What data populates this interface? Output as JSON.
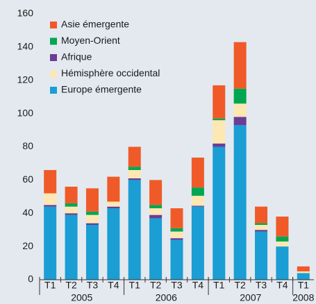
{
  "chart_data": {
    "type": "stacked_bar",
    "categories": [
      "T1",
      "T2",
      "T3",
      "T4",
      "T1",
      "T2",
      "T3",
      "T4",
      "T1",
      "T2",
      "T3",
      "T4",
      "T1"
    ],
    "groups": [
      {
        "label": "2005",
        "size": 4
      },
      {
        "label": "2006",
        "size": 4
      },
      {
        "label": "2007",
        "size": 4
      },
      {
        "label": "2008",
        "size": 1
      }
    ],
    "series": [
      {
        "name": "Asie émergente",
        "color": "#f05a28",
        "values": [
          14,
          10,
          14,
          15,
          12,
          15,
          12,
          18,
          20,
          28,
          10,
          12,
          3
        ]
      },
      {
        "name": "Moyen-Orient",
        "color": "#00a651",
        "values": [
          0,
          2,
          2,
          0,
          2,
          2,
          2,
          5,
          1,
          9,
          1,
          3,
          0
        ]
      },
      {
        "name": "Afrique",
        "color": "#6a3d96",
        "values": [
          1,
          1,
          1,
          1,
          1,
          2,
          1,
          0.5,
          2,
          5,
          1,
          0,
          0
        ]
      },
      {
        "name": "Hémisphère occidental",
        "color": "#fde7b3",
        "values": [
          7,
          4,
          5,
          3,
          5,
          4,
          4,
          6,
          14,
          8,
          3,
          3,
          1
        ]
      },
      {
        "name": "Europe émergente",
        "color": "#1a9ed4",
        "values": [
          44,
          39,
          33,
          43,
          60,
          37,
          24,
          44,
          80,
          93,
          29,
          20,
          4
        ]
      }
    ],
    "ylim": [
      0,
      160
    ],
    "yticks": [
      0,
      20,
      40,
      60,
      80,
      100,
      120,
      140,
      160
    ]
  }
}
